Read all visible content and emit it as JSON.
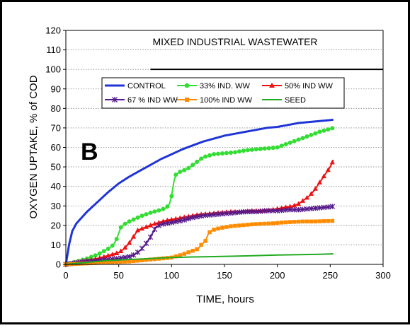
{
  "chart_data": {
    "type": "line",
    "title": "MIXED INDUSTRIAL WASTEWATER",
    "panel_label": "B",
    "xlabel": "TIME, hours",
    "ylabel": "OXYGEN UPTAKE, % of COD",
    "xlim": [
      0,
      300
    ],
    "ylim": [
      0,
      120
    ],
    "x_ticks": [
      "0",
      "50",
      "100",
      "150",
      "200",
      "250",
      "300"
    ],
    "y_ticks": [
      "0",
      "10",
      "20",
      "30",
      "40",
      "50",
      "60",
      "70",
      "80",
      "90",
      "100",
      "110",
      "120"
    ],
    "grid": true,
    "legend_position": "top-center",
    "reference_line": {
      "y": 100,
      "x_start": 80,
      "x_end": 300,
      "color": "#000000"
    },
    "series": [
      {
        "name": "CONTROL",
        "color": "#1f35d6",
        "marker": "none",
        "points": [
          [
            0,
            0
          ],
          [
            3,
            10
          ],
          [
            6,
            17
          ],
          [
            10,
            21
          ],
          [
            15,
            24
          ],
          [
            20,
            27
          ],
          [
            30,
            32
          ],
          [
            40,
            37
          ],
          [
            50,
            41.5
          ],
          [
            60,
            45
          ],
          [
            70,
            48
          ],
          [
            80,
            51
          ],
          [
            90,
            54
          ],
          [
            100,
            56.5
          ],
          [
            110,
            59
          ],
          [
            120,
            61
          ],
          [
            130,
            63
          ],
          [
            140,
            64.5
          ],
          [
            150,
            66
          ],
          [
            160,
            67
          ],
          [
            170,
            68
          ],
          [
            180,
            69
          ],
          [
            190,
            70
          ],
          [
            200,
            70.5
          ],
          [
            210,
            71.5
          ],
          [
            220,
            72.5
          ],
          [
            230,
            73
          ],
          [
            240,
            73.5
          ],
          [
            250,
            74
          ],
          [
            253,
            74.2
          ]
        ]
      },
      {
        "name": "33% IND. WW",
        "color": "#33dd33",
        "marker": "circle",
        "points": [
          [
            0,
            0
          ],
          [
            10,
            1.5
          ],
          [
            20,
            3
          ],
          [
            30,
            5
          ],
          [
            40,
            8
          ],
          [
            45,
            10
          ],
          [
            48,
            13
          ],
          [
            50,
            16
          ],
          [
            52,
            19
          ],
          [
            55,
            20.5
          ],
          [
            60,
            22
          ],
          [
            70,
            24.5
          ],
          [
            80,
            26.5
          ],
          [
            90,
            28
          ],
          [
            95,
            29
          ],
          [
            98,
            31
          ],
          [
            100,
            35
          ],
          [
            102,
            42
          ],
          [
            104,
            46
          ],
          [
            108,
            47.5
          ],
          [
            115,
            49
          ],
          [
            120,
            51
          ],
          [
            125,
            53
          ],
          [
            130,
            55
          ],
          [
            140,
            56.5
          ],
          [
            150,
            57
          ],
          [
            160,
            57.5
          ],
          [
            170,
            58.5
          ],
          [
            180,
            59
          ],
          [
            190,
            59.5
          ],
          [
            200,
            60
          ],
          [
            210,
            62
          ],
          [
            220,
            64
          ],
          [
            230,
            66
          ],
          [
            240,
            68
          ],
          [
            250,
            69.5
          ],
          [
            253,
            70
          ]
        ]
      },
      {
        "name": "50% IND WW",
        "color": "#ee1111",
        "marker": "triangle",
        "points": [
          [
            0,
            0
          ],
          [
            10,
            1
          ],
          [
            20,
            2
          ],
          [
            30,
            3
          ],
          [
            40,
            4.5
          ],
          [
            50,
            6
          ],
          [
            55,
            8
          ],
          [
            60,
            11
          ],
          [
            65,
            15
          ],
          [
            68,
            17.5
          ],
          [
            75,
            19
          ],
          [
            85,
            21
          ],
          [
            95,
            22.5
          ],
          [
            105,
            23.5
          ],
          [
            115,
            24.5
          ],
          [
            125,
            25.5
          ],
          [
            135,
            26
          ],
          [
            145,
            26.5
          ],
          [
            155,
            27
          ],
          [
            165,
            27
          ],
          [
            175,
            27.5
          ],
          [
            185,
            27.5
          ],
          [
            195,
            28
          ],
          [
            205,
            29
          ],
          [
            215,
            30
          ],
          [
            220,
            31
          ],
          [
            225,
            33
          ],
          [
            230,
            35
          ],
          [
            235,
            38
          ],
          [
            240,
            42
          ],
          [
            245,
            46
          ],
          [
            250,
            50
          ],
          [
            253,
            53.5
          ]
        ]
      },
      {
        "name": "67 % IND WW",
        "color": "#551a8b",
        "marker": "star",
        "points": [
          [
            0,
            0
          ],
          [
            10,
            0.8
          ],
          [
            20,
            1.5
          ],
          [
            30,
            2
          ],
          [
            40,
            2.5
          ],
          [
            50,
            3
          ],
          [
            60,
            4
          ],
          [
            65,
            5
          ],
          [
            70,
            7
          ],
          [
            75,
            10
          ],
          [
            80,
            14
          ],
          [
            85,
            19
          ],
          [
            90,
            20.5
          ],
          [
            100,
            21.5
          ],
          [
            110,
            22.5
          ],
          [
            120,
            24
          ],
          [
            130,
            25
          ],
          [
            140,
            25.5
          ],
          [
            150,
            26
          ],
          [
            160,
            26.5
          ],
          [
            170,
            27
          ],
          [
            180,
            27
          ],
          [
            190,
            27.5
          ],
          [
            200,
            27.5
          ],
          [
            210,
            28
          ],
          [
            220,
            28
          ],
          [
            230,
            28.5
          ],
          [
            240,
            29
          ],
          [
            250,
            29.5
          ],
          [
            253,
            29.8
          ]
        ]
      },
      {
        "name": "100% IND WW",
        "color": "#ff8c00",
        "marker": "square",
        "points": [
          [
            0,
            0
          ],
          [
            20,
            0.5
          ],
          [
            40,
            1
          ],
          [
            60,
            1.5
          ],
          [
            80,
            2.5
          ],
          [
            100,
            3.5
          ],
          [
            110,
            5
          ],
          [
            120,
            7
          ],
          [
            125,
            8
          ],
          [
            128,
            10
          ],
          [
            132,
            12
          ],
          [
            135,
            16
          ],
          [
            138,
            17.5
          ],
          [
            145,
            18.5
          ],
          [
            155,
            19.5
          ],
          [
            165,
            20
          ],
          [
            175,
            20.5
          ],
          [
            185,
            20.8
          ],
          [
            195,
            21
          ],
          [
            205,
            21.5
          ],
          [
            215,
            21.8
          ],
          [
            225,
            22
          ],
          [
            235,
            22
          ],
          [
            245,
            22.2
          ],
          [
            253,
            22.3
          ]
        ]
      },
      {
        "name": "SEED",
        "color": "#22aa22",
        "marker": "none",
        "points": [
          [
            0,
            0
          ],
          [
            20,
            1
          ],
          [
            40,
            2
          ],
          [
            60,
            2.5
          ],
          [
            80,
            3
          ],
          [
            100,
            3.5
          ],
          [
            120,
            3.8
          ],
          [
            140,
            4
          ],
          [
            160,
            4.2
          ],
          [
            180,
            4.5
          ],
          [
            200,
            4.8
          ],
          [
            220,
            5
          ],
          [
            240,
            5.2
          ],
          [
            253,
            5.4
          ]
        ]
      }
    ]
  }
}
